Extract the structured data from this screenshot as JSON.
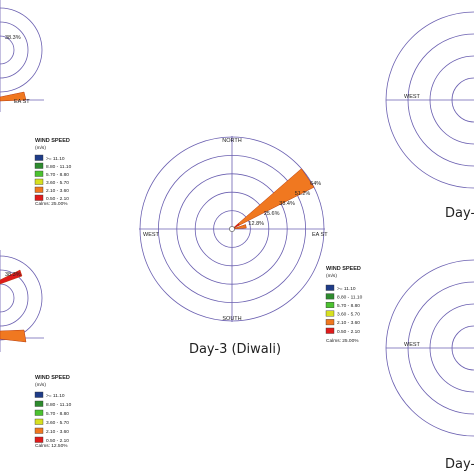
{
  "chart_data": [
    {
      "type": "wind-rose",
      "panel": "top-left",
      "title": "",
      "direction_labels": {
        "east": "EA ST"
      },
      "ring_labels": [
        "38.3%"
      ],
      "legend": {
        "title": "WIND SPEED",
        "unit": "(m/s)",
        "classes": [
          ">= 11.10",
          "8.80 - 11.10",
          "5.70 - 8.80",
          "3.60 - 5.70",
          "2.10 - 3.60",
          "0.50 - 2.10"
        ],
        "colors": [
          "#1f3c88",
          "#2e8b2e",
          "#4cc230",
          "#d7e021",
          "#f07820",
          "#e01b1b"
        ],
        "calms": "Calms: 25.00%"
      }
    },
    {
      "type": "wind-rose",
      "panel": "center",
      "title": "Day-3 (Diwali)",
      "direction_labels": {
        "north": "NORTH",
        "south": "SOUTH",
        "east": "EA ST",
        "west": "WEST"
      },
      "ring_labels": [
        "12.8%",
        "25.6%",
        "38.4%",
        "51.2%",
        "64%"
      ],
      "ring_max_percent": 64,
      "petals": [
        {
          "direction_deg": 56,
          "frequency_percent": 64,
          "class_percents": [
            0,
            0,
            0,
            0,
            58,
            6
          ]
        },
        {
          "direction_deg": 79,
          "frequency_percent": 10,
          "class_percents": [
            0,
            0,
            0,
            0,
            8,
            2
          ]
        }
      ],
      "legend": {
        "title": "WIND SPEED",
        "unit": "(m/s)",
        "classes": [
          ">= 11.10",
          "8.80 - 11.10",
          "5.70 - 8.80",
          "3.60 - 5.70",
          "2.10 - 3.60",
          "0.50 - 2.10"
        ],
        "colors": [
          "#1f3c88",
          "#2e8b2e",
          "#4cc230",
          "#d7e021",
          "#f07820",
          "#e01b1b"
        ],
        "calms": "Calms: 25.00%"
      }
    },
    {
      "type": "wind-rose",
      "panel": "top-right",
      "title": "Day-",
      "direction_labels": {
        "west": "WEST"
      }
    },
    {
      "type": "wind-rose",
      "panel": "bottom-left",
      "title": "",
      "ring_labels": [
        "38.3%"
      ],
      "legend": {
        "title": "WIND SPEED",
        "unit": "(m/s)",
        "classes": [
          ">= 11.10",
          "8.80 - 11.10",
          "5.70 - 8.80",
          "3.60 - 5.70",
          "2.10 - 3.60",
          "0.50 - 2.10"
        ],
        "colors": [
          "#1f3c88",
          "#2e8b2e",
          "#4cc230",
          "#d7e021",
          "#f07820",
          "#e01b1b"
        ],
        "calms": "Calms: 12.50%"
      }
    },
    {
      "type": "wind-rose",
      "panel": "bottom-right",
      "title": "Day-",
      "direction_labels": {
        "west": "WEST"
      }
    }
  ]
}
